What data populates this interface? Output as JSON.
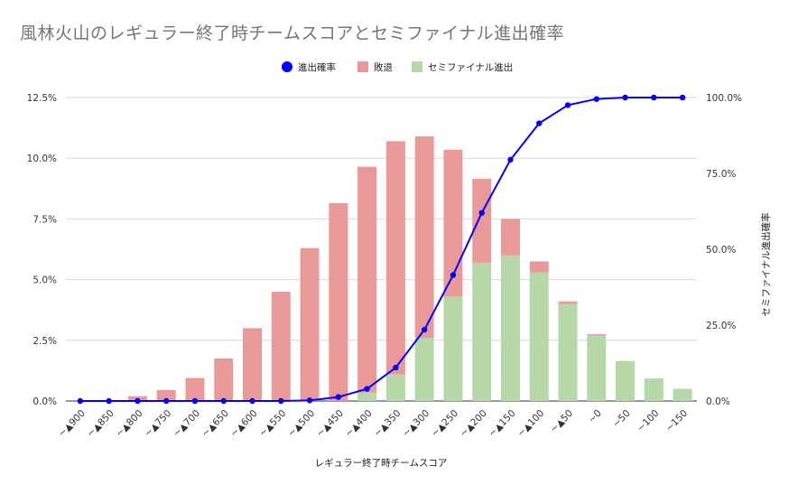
{
  "chart_data": {
    "type": "bar",
    "title": "風林火山のレギュラー終了時チームスコアとセミファイナル進出確率",
    "xlabel": "レギュラー終了時チームスコア",
    "ylabel": "",
    "y2label": "セミファイナル進出確率",
    "stacked": true,
    "categories": [
      "~▲900",
      "~▲850",
      "~▲800",
      "~▲750",
      "~▲700",
      "~▲650",
      "~▲600",
      "~▲550",
      "~▲500",
      "~▲450",
      "~▲400",
      "~▲350",
      "~▲300",
      "~▲250",
      "~▲200",
      "~▲150",
      "~▲100",
      "~▲50",
      "~0",
      "~50",
      "~100",
      "~150"
    ],
    "series": [
      {
        "name": "敗退",
        "type": "bar",
        "axis": "left",
        "color": "#ea9999",
        "values": [
          0.0,
          0.0,
          0.2,
          0.45,
          0.95,
          1.75,
          3.0,
          4.5,
          6.3,
          8.15,
          9.3,
          9.6,
          8.3,
          6.05,
          3.45,
          1.5,
          0.45,
          0.1,
          0.05,
          0.0,
          0.0,
          0.0
        ]
      },
      {
        "name": "セミファイナル進出",
        "type": "bar",
        "axis": "left",
        "color": "#b6d7a8",
        "values": [
          0.0,
          0.0,
          0.0,
          0.0,
          0.0,
          0.0,
          0.0,
          0.0,
          0.0,
          0.0,
          0.35,
          1.1,
          2.6,
          4.3,
          5.7,
          6.0,
          5.3,
          4.0,
          2.7,
          1.65,
          0.93,
          0.5
        ]
      },
      {
        "name": "進出確率",
        "type": "line",
        "axis": "right",
        "color": "#0000ff",
        "values": [
          0.0,
          0.0,
          0.0,
          0.0,
          0.0,
          0.0,
          0.0,
          0.0,
          0.2,
          1.3,
          4.0,
          11.0,
          23.5,
          41.5,
          62.0,
          79.5,
          91.5,
          97.5,
          99.5,
          100.0,
          100.0,
          100.0
        ]
      }
    ],
    "ylim": [
      0,
      12.5
    ],
    "y_ticks": [
      "0.0%",
      "2.5%",
      "5.0%",
      "7.5%",
      "10.0%",
      "12.5%"
    ],
    "y2lim": [
      0,
      100
    ],
    "y2_ticks": [
      "0.0%",
      "25.0%",
      "50.0%",
      "75.0%",
      "100.0%"
    ],
    "legend": {
      "position": "top",
      "items": [
        {
          "label": "進出確率",
          "color": "#0000ff",
          "marker": "circle"
        },
        {
          "label": "敗退",
          "color": "#ea9999",
          "marker": "square"
        },
        {
          "label": "セミファイナル進出",
          "color": "#b6d7a8",
          "marker": "square"
        }
      ]
    },
    "grid": true
  }
}
